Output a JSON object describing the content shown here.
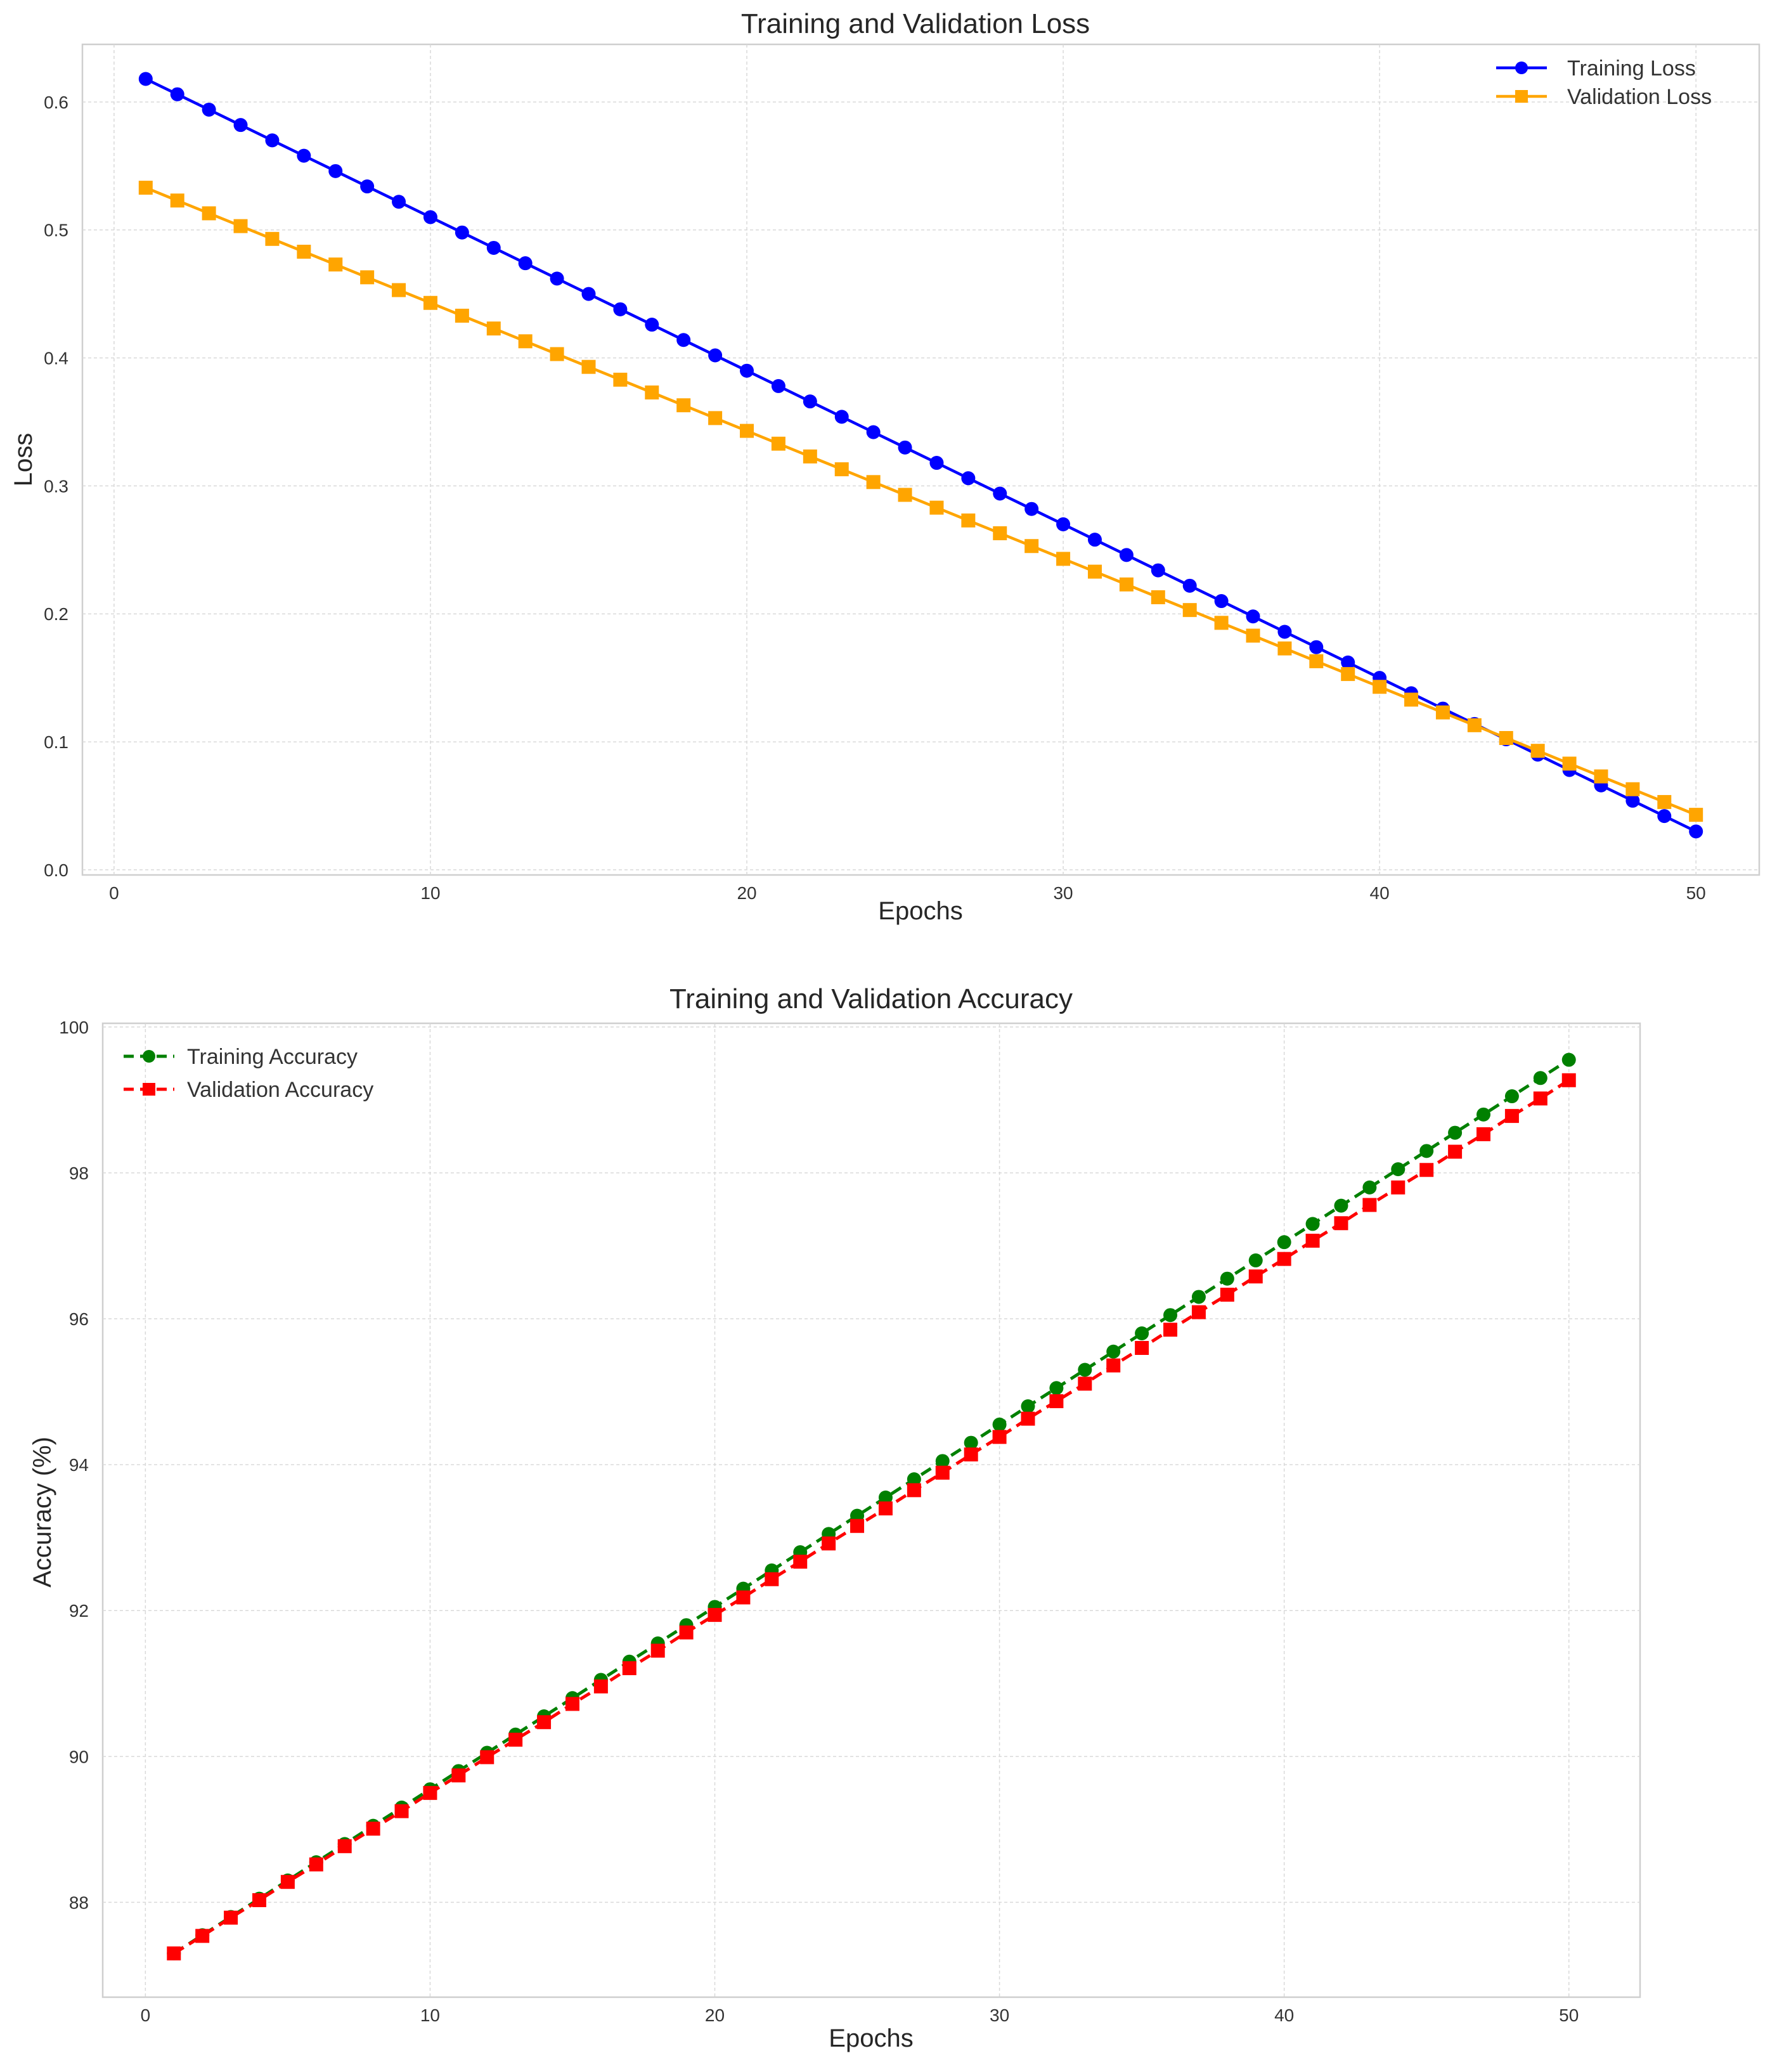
{
  "chart_data": [
    {
      "type": "line",
      "title": "Training and Validation Loss",
      "xlabel": "Epochs",
      "ylabel": "Loss",
      "xlim": [
        -1,
        52
      ],
      "ylim": [
        -0.004,
        0.645
      ],
      "xticks": [
        0,
        10,
        20,
        30,
        40,
        50
      ],
      "yticks": [
        0.0,
        0.1,
        0.2,
        0.3,
        0.4,
        0.5,
        0.6
      ],
      "ytick_labels": [
        "0.0",
        "0.1",
        "0.2",
        "0.3",
        "0.4",
        "0.5",
        "0.6"
      ],
      "grid": true,
      "legend_position": "top-right",
      "x": [
        1,
        2,
        3,
        4,
        5,
        6,
        7,
        8,
        9,
        10,
        11,
        12,
        13,
        14,
        15,
        16,
        17,
        18,
        19,
        20,
        21,
        22,
        23,
        24,
        25,
        26,
        27,
        28,
        29,
        30,
        31,
        32,
        33,
        34,
        35,
        36,
        37,
        38,
        39,
        40,
        41,
        42,
        43,
        44,
        45,
        46,
        47,
        48,
        49,
        50
      ],
      "series": [
        {
          "name": "Training Loss",
          "color": "#0000ff",
          "marker": "circle",
          "line_style": "solid",
          "values": [
            0.618,
            0.606,
            0.594,
            0.582,
            0.57,
            0.558,
            0.546,
            0.534,
            0.522,
            0.51,
            0.498,
            0.486,
            0.474,
            0.462,
            0.45,
            0.438,
            0.426,
            0.414,
            0.402,
            0.39,
            0.378,
            0.366,
            0.354,
            0.342,
            0.33,
            0.318,
            0.306,
            0.294,
            0.282,
            0.27,
            0.258,
            0.246,
            0.234,
            0.222,
            0.21,
            0.198,
            0.186,
            0.174,
            0.162,
            0.15,
            0.138,
            0.126,
            0.114,
            0.102,
            0.09,
            0.078,
            0.066,
            0.054,
            0.042,
            0.03
          ]
        },
        {
          "name": "Validation Loss",
          "color": "#ffa500",
          "marker": "square",
          "line_style": "solid",
          "values": [
            0.533,
            0.523,
            0.513,
            0.503,
            0.493,
            0.483,
            0.473,
            0.463,
            0.453,
            0.443,
            0.433,
            0.423,
            0.413,
            0.403,
            0.393,
            0.383,
            0.373,
            0.363,
            0.353,
            0.343,
            0.333,
            0.323,
            0.313,
            0.303,
            0.293,
            0.283,
            0.273,
            0.263,
            0.253,
            0.243,
            0.233,
            0.223,
            0.213,
            0.203,
            0.193,
            0.183,
            0.173,
            0.163,
            0.153,
            0.143,
            0.133,
            0.123,
            0.113,
            0.103,
            0.093,
            0.083,
            0.073,
            0.063,
            0.053,
            0.043
          ]
        }
      ]
    },
    {
      "type": "line",
      "title": "Training and Validation Accuracy",
      "xlabel": "Epochs",
      "ylabel": "Accuracy (%)",
      "xlim": [
        -1.5,
        52.5
      ],
      "ylim": [
        86.7,
        100.05
      ],
      "xticks": [
        0,
        10,
        20,
        30,
        40,
        50
      ],
      "yticks": [
        88,
        90,
        92,
        94,
        96,
        98,
        100
      ],
      "ytick_labels": [
        "88",
        "90",
        "92",
        "94",
        "96",
        "98",
        "100"
      ],
      "grid": true,
      "legend_position": "top-left",
      "x": [
        1,
        2,
        3,
        4,
        5,
        6,
        7,
        8,
        9,
        10,
        11,
        12,
        13,
        14,
        15,
        16,
        17,
        18,
        19,
        20,
        21,
        22,
        23,
        24,
        25,
        26,
        27,
        28,
        29,
        30,
        31,
        32,
        33,
        34,
        35,
        36,
        37,
        38,
        39,
        40,
        41,
        42,
        43,
        44,
        45,
        46,
        47,
        48,
        49,
        50
      ],
      "series": [
        {
          "name": "Training Accuracy",
          "color": "#008000",
          "marker": "circle",
          "line_style": "dashed",
          "values": [
            87.3,
            87.55,
            87.8,
            88.05,
            88.3,
            88.55,
            88.8,
            89.05,
            89.3,
            89.55,
            89.8,
            90.05,
            90.3,
            90.55,
            90.8,
            91.05,
            91.3,
            91.55,
            91.8,
            92.05,
            92.3,
            92.55,
            92.8,
            93.05,
            93.3,
            93.55,
            93.8,
            94.05,
            94.3,
            94.55,
            94.8,
            95.05,
            95.3,
            95.55,
            95.8,
            96.05,
            96.3,
            96.55,
            96.8,
            97.05,
            97.3,
            97.55,
            97.8,
            98.05,
            98.3,
            98.55,
            98.8,
            99.05,
            99.3,
            99.55
          ]
        },
        {
          "name": "Validation Accuracy",
          "color": "#ff0000",
          "marker": "square",
          "line_style": "dashed",
          "values": [
            87.3,
            87.54,
            87.79,
            88.03,
            88.28,
            88.52,
            88.77,
            89.01,
            89.25,
            89.5,
            89.74,
            89.99,
            90.23,
            90.47,
            90.72,
            90.96,
            91.21,
            91.45,
            91.7,
            91.94,
            92.18,
            92.43,
            92.67,
            92.92,
            93.16,
            93.4,
            93.65,
            93.89,
            94.14,
            94.38,
            94.63,
            94.87,
            95.11,
            95.36,
            95.6,
            95.85,
            96.09,
            96.33,
            96.58,
            96.82,
            97.07,
            97.31,
            97.56,
            97.8,
            98.04,
            98.29,
            98.53,
            98.78,
            99.02,
            99.27
          ]
        }
      ]
    }
  ]
}
